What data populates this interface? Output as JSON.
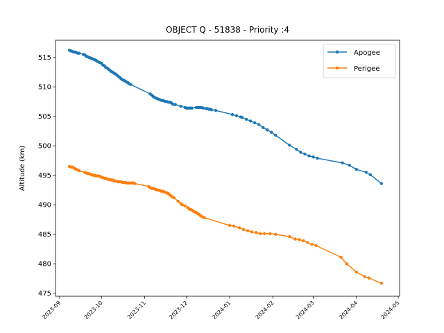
{
  "chart_data": {
    "type": "line",
    "title": "OBJECT Q - 51838 - Priority :4",
    "xlabel": "",
    "ylabel": "Altitude (km)",
    "x_type": "date",
    "xlim": [
      "2023-08-29",
      "2024-05-02"
    ],
    "ylim": [
      474.5,
      517.9
    ],
    "x_ticks": [
      "2023-09-01",
      "2023-10-01",
      "2023-11-01",
      "2023-12-01",
      "2024-01-01",
      "2024-02-01",
      "2024-03-01",
      "2024-04-01",
      "2024-05-01"
    ],
    "x_tick_labels": [
      "2023-09",
      "2023-10",
      "2023-11",
      "2023-12",
      "2024-01",
      "2024-02",
      "2024-03",
      "2024-04",
      "2024-05"
    ],
    "y_ticks": [
      475,
      480,
      485,
      490,
      495,
      500,
      505,
      510,
      515
    ],
    "grid": false,
    "legend_position": "top-right",
    "series": [
      {
        "name": "Apogee",
        "color": "#1f77b4",
        "marker": "circle",
        "points": [
          [
            "2023-09-08",
            516.2
          ],
          [
            "2023-09-09",
            516.1
          ],
          [
            "2023-09-10",
            516.0
          ],
          [
            "2023-09-11",
            515.9
          ],
          [
            "2023-09-12",
            515.9
          ],
          [
            "2023-09-13",
            515.8
          ],
          [
            "2023-09-14",
            515.7
          ],
          [
            "2023-09-15",
            515.7
          ],
          [
            "2023-09-18",
            515.5
          ],
          [
            "2023-09-19",
            515.4
          ],
          [
            "2023-09-20",
            515.2
          ],
          [
            "2023-09-21",
            515.1
          ],
          [
            "2023-09-22",
            515.0
          ],
          [
            "2023-09-23",
            514.9
          ],
          [
            "2023-09-24",
            514.8
          ],
          [
            "2023-09-25",
            514.7
          ],
          [
            "2023-09-26",
            514.6
          ],
          [
            "2023-09-27",
            514.5
          ],
          [
            "2023-09-28",
            514.3
          ],
          [
            "2023-09-29",
            514.2
          ],
          [
            "2023-09-30",
            514.1
          ],
          [
            "2023-10-01",
            514.0
          ],
          [
            "2023-10-02",
            513.7
          ],
          [
            "2023-10-03",
            513.6
          ],
          [
            "2023-10-04",
            513.3
          ],
          [
            "2023-10-05",
            513.2
          ],
          [
            "2023-10-06",
            513.0
          ],
          [
            "2023-10-07",
            512.8
          ],
          [
            "2023-10-08",
            512.6
          ],
          [
            "2023-10-09",
            512.5
          ],
          [
            "2023-10-10",
            512.3
          ],
          [
            "2023-10-11",
            512.2
          ],
          [
            "2023-10-12",
            512.0
          ],
          [
            "2023-10-13",
            511.8
          ],
          [
            "2023-10-14",
            511.6
          ],
          [
            "2023-10-15",
            511.4
          ],
          [
            "2023-10-16",
            511.2
          ],
          [
            "2023-10-17",
            511.1
          ],
          [
            "2023-10-18",
            511.0
          ],
          [
            "2023-10-19",
            510.8
          ],
          [
            "2023-10-20",
            510.7
          ],
          [
            "2023-10-21",
            510.5
          ],
          [
            "2023-10-22",
            510.4
          ],
          [
            "2023-11-05",
            508.8
          ],
          [
            "2023-11-06",
            508.6
          ],
          [
            "2023-11-07",
            508.4
          ],
          [
            "2023-11-08",
            508.2
          ],
          [
            "2023-11-09",
            508.1
          ],
          [
            "2023-11-10",
            508.0
          ],
          [
            "2023-11-11",
            507.9
          ],
          [
            "2023-11-12",
            507.8
          ],
          [
            "2023-11-13",
            507.7
          ],
          [
            "2023-11-14",
            507.7
          ],
          [
            "2023-11-15",
            507.6
          ],
          [
            "2023-11-16",
            507.5
          ],
          [
            "2023-11-17",
            507.5
          ],
          [
            "2023-11-18",
            507.4
          ],
          [
            "2023-11-19",
            507.4
          ],
          [
            "2023-11-20",
            507.3
          ],
          [
            "2023-11-21",
            507.1
          ],
          [
            "2023-11-22",
            507.0
          ],
          [
            "2023-11-23",
            507.0
          ],
          [
            "2023-11-27",
            506.7
          ],
          [
            "2023-11-30",
            506.5
          ],
          [
            "2023-12-01",
            506.4
          ],
          [
            "2023-12-02",
            506.4
          ],
          [
            "2023-12-03",
            506.4
          ],
          [
            "2023-12-04",
            506.4
          ],
          [
            "2023-12-05",
            506.4
          ],
          [
            "2023-12-08",
            506.5
          ],
          [
            "2023-12-09",
            506.5
          ],
          [
            "2023-12-10",
            506.5
          ],
          [
            "2023-12-11",
            506.5
          ],
          [
            "2023-12-12",
            506.5
          ],
          [
            "2023-12-13",
            506.4
          ],
          [
            "2023-12-15",
            506.3
          ],
          [
            "2023-12-16",
            506.3
          ],
          [
            "2023-12-17",
            506.2
          ],
          [
            "2023-12-18",
            506.2
          ],
          [
            "2023-12-19",
            506.1
          ],
          [
            "2023-12-22",
            506.0
          ],
          [
            "2024-01-03",
            505.3
          ],
          [
            "2024-01-06",
            505.1
          ],
          [
            "2024-01-09",
            504.9
          ],
          [
            "2024-01-10",
            504.8
          ],
          [
            "2024-01-13",
            504.5
          ],
          [
            "2024-01-16",
            504.2
          ],
          [
            "2024-01-19",
            503.9
          ],
          [
            "2024-01-22",
            503.6
          ],
          [
            "2024-01-25",
            503.1
          ],
          [
            "2024-01-28",
            502.7
          ],
          [
            "2024-01-31",
            502.3
          ],
          [
            "2024-02-03",
            501.8
          ],
          [
            "2024-02-13",
            500.1
          ],
          [
            "2024-02-18",
            499.4
          ],
          [
            "2024-02-21",
            498.9
          ],
          [
            "2024-02-24",
            498.6
          ],
          [
            "2024-02-27",
            498.3
          ],
          [
            "2024-03-01",
            498.1
          ],
          [
            "2024-03-04",
            497.9
          ],
          [
            "2024-03-22",
            497.1
          ],
          [
            "2024-03-27",
            496.7
          ],
          [
            "2024-04-01",
            496.0
          ],
          [
            "2024-04-08",
            495.5
          ],
          [
            "2024-04-11",
            495.1
          ],
          [
            "2024-04-19",
            493.6
          ]
        ]
      },
      {
        "name": "Perigee",
        "color": "#ff7f0e",
        "marker": "circle",
        "points": [
          [
            "2023-09-08",
            496.5
          ],
          [
            "2023-09-09",
            496.4
          ],
          [
            "2023-09-10",
            496.4
          ],
          [
            "2023-09-11",
            496.3
          ],
          [
            "2023-09-12",
            496.1
          ],
          [
            "2023-09-13",
            496.0
          ],
          [
            "2023-09-14",
            495.9
          ],
          [
            "2023-09-15",
            495.8
          ],
          [
            "2023-09-19",
            495.5
          ],
          [
            "2023-09-20",
            495.4
          ],
          [
            "2023-09-21",
            495.3
          ],
          [
            "2023-09-22",
            495.3
          ],
          [
            "2023-09-23",
            495.2
          ],
          [
            "2023-09-24",
            495.1
          ],
          [
            "2023-09-25",
            495.0
          ],
          [
            "2023-09-26",
            495.0
          ],
          [
            "2023-09-27",
            494.9
          ],
          [
            "2023-09-28",
            494.9
          ],
          [
            "2023-09-29",
            494.9
          ],
          [
            "2023-09-30",
            494.8
          ],
          [
            "2023-10-01",
            494.7
          ],
          [
            "2023-10-02",
            494.6
          ],
          [
            "2023-10-03",
            494.5
          ],
          [
            "2023-10-04",
            494.5
          ],
          [
            "2023-10-05",
            494.4
          ],
          [
            "2023-10-06",
            494.3
          ],
          [
            "2023-10-07",
            494.3
          ],
          [
            "2023-10-08",
            494.2
          ],
          [
            "2023-10-09",
            494.2
          ],
          [
            "2023-10-10",
            494.1
          ],
          [
            "2023-10-11",
            494.0
          ],
          [
            "2023-10-12",
            494.0
          ],
          [
            "2023-10-13",
            493.9
          ],
          [
            "2023-10-14",
            493.9
          ],
          [
            "2023-10-15",
            493.9
          ],
          [
            "2023-10-16",
            493.8
          ],
          [
            "2023-10-17",
            493.8
          ],
          [
            "2023-10-18",
            493.8
          ],
          [
            "2023-10-19",
            493.7
          ],
          [
            "2023-10-20",
            493.7
          ],
          [
            "2023-10-21",
            493.7
          ],
          [
            "2023-10-22",
            493.7
          ],
          [
            "2023-10-23",
            493.7
          ],
          [
            "2023-10-24",
            493.7
          ],
          [
            "2023-10-25",
            493.6
          ],
          [
            "2023-11-04",
            493.1
          ],
          [
            "2023-11-05",
            492.9
          ],
          [
            "2023-11-06",
            492.8
          ],
          [
            "2023-11-07",
            492.8
          ],
          [
            "2023-11-08",
            492.7
          ],
          [
            "2023-11-09",
            492.6
          ],
          [
            "2023-11-10",
            492.5
          ],
          [
            "2023-11-11",
            492.5
          ],
          [
            "2023-11-12",
            492.4
          ],
          [
            "2023-11-13",
            492.3
          ],
          [
            "2023-11-14",
            492.3
          ],
          [
            "2023-11-15",
            492.2
          ],
          [
            "2023-11-16",
            492.1
          ],
          [
            "2023-11-17",
            492.0
          ],
          [
            "2023-11-18",
            491.9
          ],
          [
            "2023-11-19",
            491.7
          ],
          [
            "2023-11-20",
            491.5
          ],
          [
            "2023-11-21",
            491.3
          ],
          [
            "2023-11-22",
            491.2
          ],
          [
            "2023-11-25",
            490.6
          ],
          [
            "2023-11-27",
            490.2
          ],
          [
            "2023-11-28",
            490.0
          ],
          [
            "2023-11-30",
            489.8
          ],
          [
            "2023-12-02",
            489.5
          ],
          [
            "2023-12-03",
            489.3
          ],
          [
            "2023-12-04",
            489.2
          ],
          [
            "2023-12-05",
            489.1
          ],
          [
            "2023-12-06",
            488.9
          ],
          [
            "2023-12-07",
            488.8
          ],
          [
            "2023-12-08",
            488.7
          ],
          [
            "2023-12-09",
            488.5
          ],
          [
            "2023-12-10",
            488.4
          ],
          [
            "2023-12-11",
            488.2
          ],
          [
            "2023-12-12",
            488.0
          ],
          [
            "2023-12-13",
            487.9
          ],
          [
            "2023-12-14",
            487.8
          ],
          [
            "2024-01-01",
            486.5
          ],
          [
            "2024-01-04",
            486.4
          ],
          [
            "2024-01-08",
            486.1
          ],
          [
            "2024-01-11",
            485.8
          ],
          [
            "2024-01-14",
            485.6
          ],
          [
            "2024-01-17",
            485.4
          ],
          [
            "2024-01-20",
            485.3
          ],
          [
            "2024-01-23",
            485.1
          ],
          [
            "2024-01-26",
            485.1
          ],
          [
            "2024-01-30",
            485.1
          ],
          [
            "2024-02-03",
            485.0
          ],
          [
            "2024-02-13",
            484.6
          ],
          [
            "2024-02-17",
            484.2
          ],
          [
            "2024-02-20",
            484.1
          ],
          [
            "2024-02-23",
            483.9
          ],
          [
            "2024-02-26",
            483.6
          ],
          [
            "2024-02-29",
            483.3
          ],
          [
            "2024-03-03",
            483.1
          ],
          [
            "2024-03-21",
            481.1
          ],
          [
            "2024-03-25",
            480.0
          ],
          [
            "2024-04-01",
            478.6
          ],
          [
            "2024-04-07",
            477.8
          ],
          [
            "2024-04-10",
            477.6
          ],
          [
            "2024-04-19",
            476.7
          ]
        ]
      }
    ]
  }
}
